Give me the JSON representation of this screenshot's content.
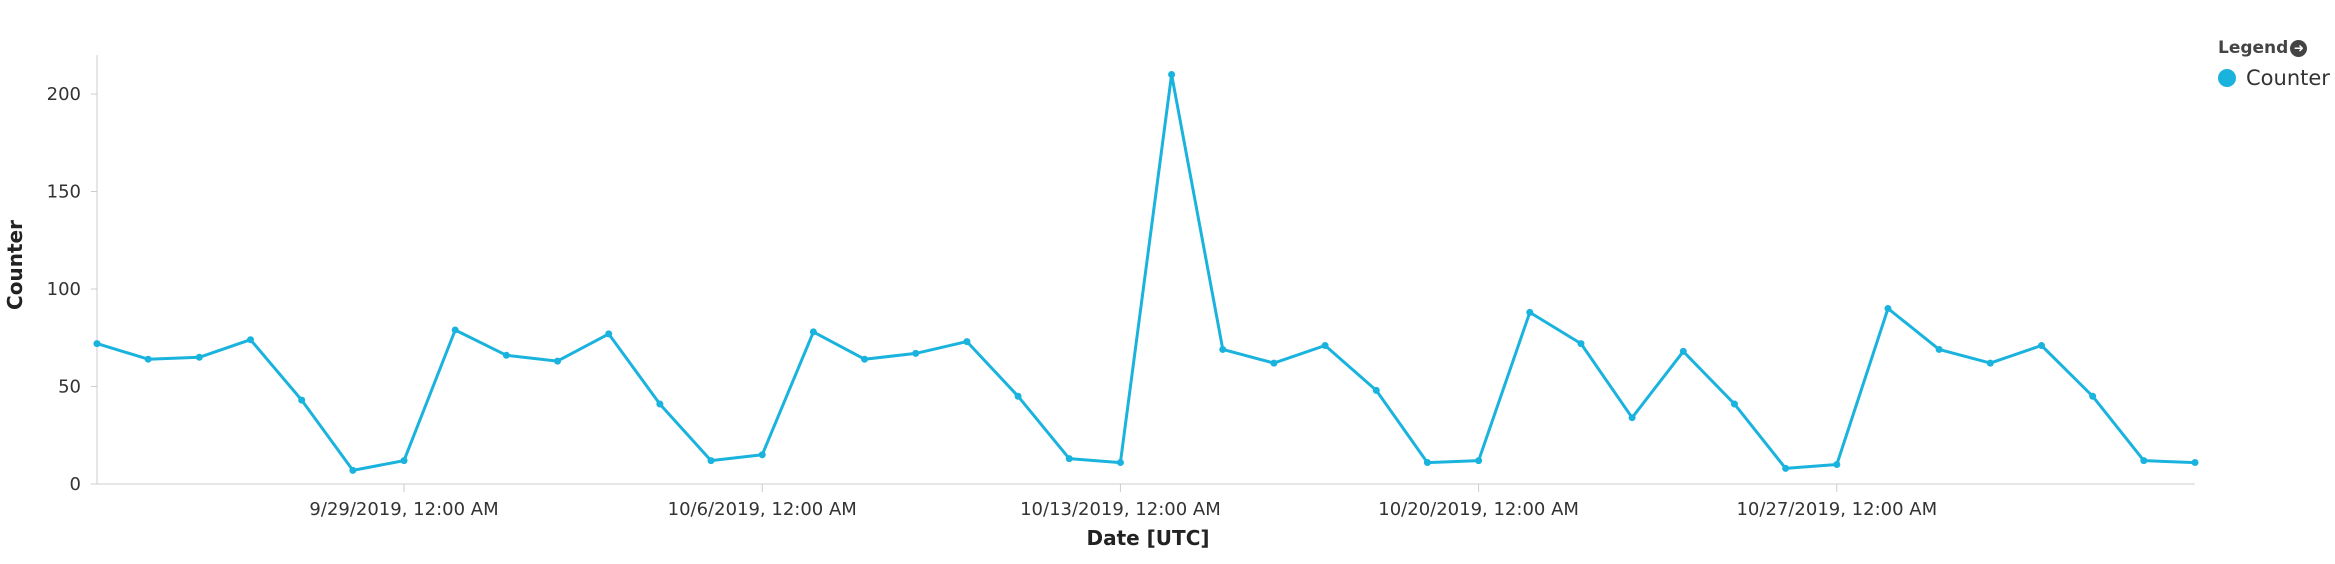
{
  "chart_data": {
    "type": "line",
    "xlabel": "Date [UTC]",
    "ylabel": "Counter",
    "xlim": [
      "2019-09-23",
      "2019-11-03"
    ],
    "ylim": [
      0,
      220
    ],
    "yticks": [
      0,
      50,
      100,
      150,
      200
    ],
    "x_ticks": [
      {
        "date": "2019-09-29",
        "label": "9/29/2019, 12:00 AM"
      },
      {
        "date": "2019-10-06",
        "label": "10/6/2019, 12:00 AM"
      },
      {
        "date": "2019-10-13",
        "label": "10/13/2019, 12:00 AM"
      },
      {
        "date": "2019-10-20",
        "label": "10/20/2019, 12:00 AM"
      },
      {
        "date": "2019-10-27",
        "label": "10/27/2019, 12:00 AM"
      }
    ],
    "grid": false,
    "legend": {
      "title": "Legend",
      "placement": "top-right"
    },
    "series": [
      {
        "name": "Counter",
        "color": "#1ab3de",
        "x": [
          "2019-09-23",
          "2019-09-24",
          "2019-09-25",
          "2019-09-26",
          "2019-09-27",
          "2019-09-28",
          "2019-09-29",
          "2019-09-30",
          "2019-10-01",
          "2019-10-02",
          "2019-10-03",
          "2019-10-04",
          "2019-10-05",
          "2019-10-06",
          "2019-10-07",
          "2019-10-08",
          "2019-10-09",
          "2019-10-10",
          "2019-10-11",
          "2019-10-12",
          "2019-10-13",
          "2019-10-14",
          "2019-10-15",
          "2019-10-16",
          "2019-10-17",
          "2019-10-18",
          "2019-10-19",
          "2019-10-20",
          "2019-10-21",
          "2019-10-22",
          "2019-10-23",
          "2019-10-24",
          "2019-10-25",
          "2019-10-26",
          "2019-10-27",
          "2019-10-28",
          "2019-10-29",
          "2019-10-30",
          "2019-10-31",
          "2019-11-01",
          "2019-11-02",
          "2019-11-03"
        ],
        "values": [
          72,
          64,
          65,
          74,
          43,
          7,
          12,
          79,
          66,
          63,
          77,
          41,
          12,
          15,
          78,
          64,
          67,
          73,
          45,
          13,
          11,
          210,
          69,
          62,
          71,
          48,
          11,
          12,
          88,
          72,
          34,
          68,
          41,
          8,
          10,
          90,
          69,
          62,
          71,
          45,
          12,
          11
        ]
      }
    ]
  }
}
